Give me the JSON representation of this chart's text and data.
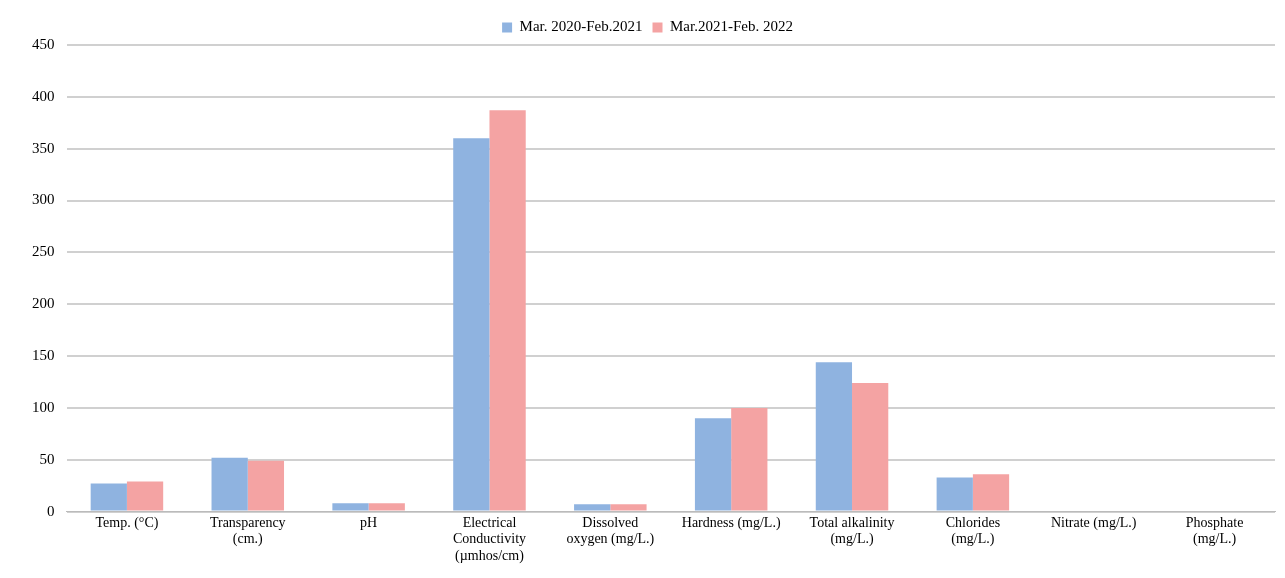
{
  "chart_data": {
    "type": "bar",
    "categories": [
      "Temp. (°C)",
      "Transparency (cm.)",
      "pH",
      "Electrical Conductivity (µmhos/cm)",
      "Dissolved oxygen (mg/L.)",
      "Hardness (mg/L.)",
      "Total alkalinity (mg/L.)",
      "Chlorides (mg/L.)",
      "Nitrate (mg/L.)",
      "Phosphate (mg/L.)"
    ],
    "series": [
      {
        "name": "Mar. 2020-Feb.2021",
        "color": "#8fb3e0",
        "values": [
          27,
          52,
          8,
          360,
          7,
          90,
          144,
          33,
          1,
          1
        ]
      },
      {
        "name": "Mar.2021-Feb. 2022",
        "color": "#f4a3a3",
        "values": [
          29,
          49,
          8,
          387,
          7,
          100,
          124,
          36,
          1,
          1
        ]
      }
    ],
    "ylim": [
      0,
      450
    ],
    "yticks": [
      0,
      50,
      100,
      150,
      200,
      250,
      300,
      350,
      400,
      450
    ],
    "grid": "y",
    "legend": "top"
  }
}
